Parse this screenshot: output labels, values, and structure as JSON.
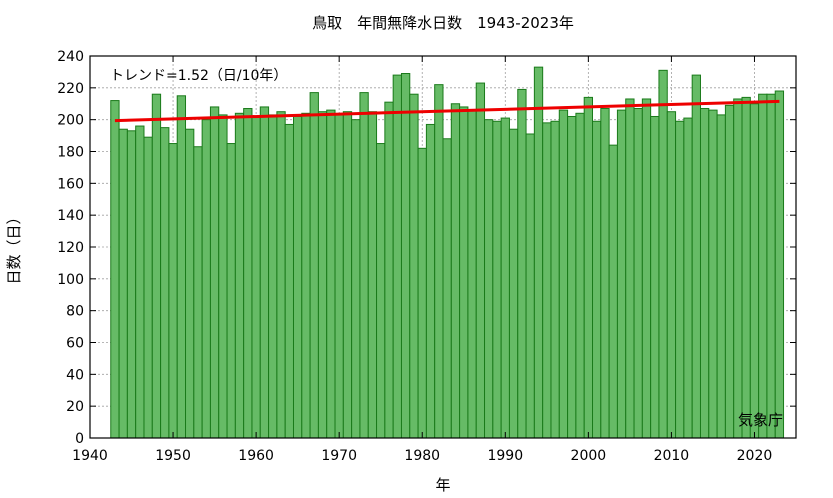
{
  "chart_data": {
    "type": "bar",
    "title": "鳥取　年間無降水日数　1943-2023年",
    "xlabel": "年",
    "ylabel": "日数（日）",
    "annotation": "トレンド=1.52（日/10年）",
    "credit": "気象庁",
    "xlim": [
      1940,
      2025
    ],
    "ylim": [
      0,
      240
    ],
    "xticks": [
      1940,
      1950,
      1960,
      1970,
      1980,
      1990,
      2000,
      2010,
      2020
    ],
    "yticks": [
      0,
      20,
      40,
      60,
      80,
      100,
      120,
      140,
      160,
      180,
      200,
      220,
      240
    ],
    "grid": true,
    "x": [
      1943,
      1944,
      1945,
      1946,
      1947,
      1948,
      1949,
      1950,
      1951,
      1952,
      1953,
      1954,
      1955,
      1956,
      1957,
      1958,
      1959,
      1960,
      1961,
      1962,
      1963,
      1964,
      1965,
      1966,
      1967,
      1968,
      1969,
      1970,
      1971,
      1972,
      1973,
      1974,
      1975,
      1976,
      1977,
      1978,
      1979,
      1980,
      1981,
      1982,
      1983,
      1984,
      1985,
      1986,
      1987,
      1988,
      1989,
      1990,
      1991,
      1992,
      1993,
      1994,
      1995,
      1996,
      1997,
      1998,
      1999,
      2000,
      2001,
      2002,
      2003,
      2004,
      2005,
      2006,
      2007,
      2008,
      2009,
      2010,
      2011,
      2012,
      2013,
      2014,
      2015,
      2016,
      2017,
      2018,
      2019,
      2020,
      2021,
      2022,
      2023
    ],
    "values": [
      212,
      194,
      193,
      196,
      189,
      216,
      195,
      185,
      215,
      194,
      183,
      200,
      208,
      203,
      185,
      204,
      207,
      202,
      208,
      203,
      205,
      197,
      202,
      204,
      217,
      205,
      206,
      203,
      205,
      200,
      217,
      205,
      185,
      211,
      228,
      229,
      216,
      182,
      197,
      222,
      188,
      210,
      208,
      206,
      223,
      200,
      199,
      201,
      194,
      219,
      191,
      233,
      198,
      199,
      206,
      202,
      204,
      214,
      199,
      207,
      184,
      206,
      213,
      207,
      213,
      202,
      231,
      205,
      199,
      201,
      228,
      207,
      206,
      203,
      209,
      213,
      214,
      210,
      216,
      216,
      218
    ],
    "trend": {
      "start": [
        1943,
        199.4
      ],
      "end": [
        2023,
        211.5
      ]
    },
    "colors": {
      "bar_fill": "#66bb66",
      "bar_edge": "#1a7a1a",
      "trend": "#ee0000",
      "grid": "#a0a0a0"
    }
  }
}
